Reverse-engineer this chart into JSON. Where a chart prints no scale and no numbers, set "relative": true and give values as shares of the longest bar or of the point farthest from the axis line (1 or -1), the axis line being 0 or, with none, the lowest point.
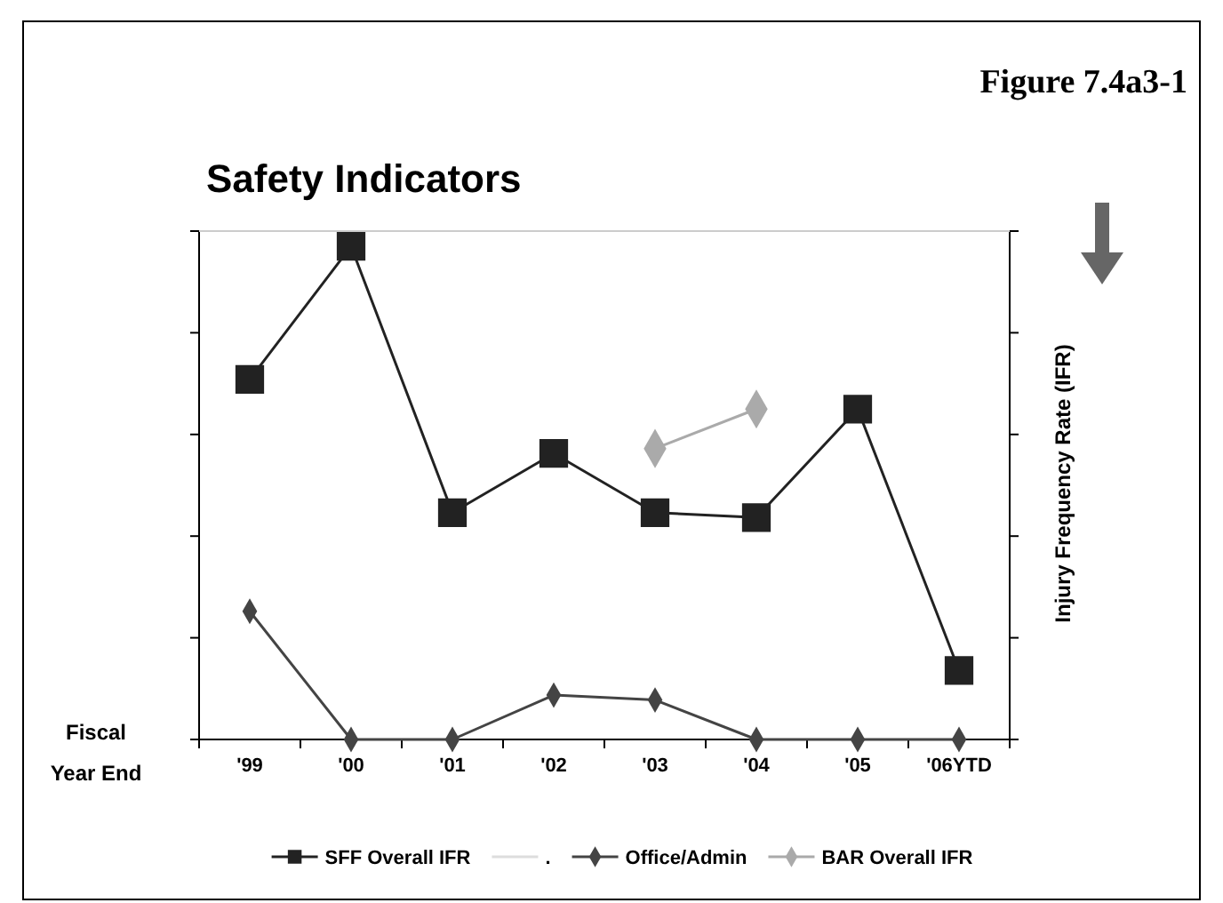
{
  "chart_data": {
    "type": "line",
    "title": "Safety Indicators",
    "xlabel": "Fiscal Year End",
    "ylabel": "Injury Frequency Rate (IFR)",
    "annotations": [
      "Figure 7.4a3-1"
    ],
    "categories": [
      "'99",
      "'00",
      "'01",
      "'02",
      "'03",
      "'04",
      "'05",
      "'06YTD"
    ],
    "relative": true,
    "legend": "bottom",
    "series": [
      {
        "name": "SFF Overall IFR",
        "color": "#222222",
        "marker": "square",
        "values": [
          0.73,
          1,
          0.46,
          0.58,
          0.46,
          0.45,
          0.67,
          0.14
        ]
      },
      {
        "name": ".",
        "color": "#dddddd",
        "marker": "none",
        "values": [
          null,
          null,
          null,
          null,
          null,
          null,
          null,
          null
        ]
      },
      {
        "name": "Office/Admin",
        "color": "#444444",
        "marker": "diamond",
        "values": [
          0.26,
          0,
          0,
          0.09,
          0.08,
          0,
          0,
          0
        ]
      },
      {
        "name": "BAR Overall IFR",
        "color": "#aaaaaa",
        "marker": "diamond",
        "values": [
          null,
          null,
          null,
          null,
          0.59,
          0.67,
          null,
          null
        ]
      }
    ]
  }
}
